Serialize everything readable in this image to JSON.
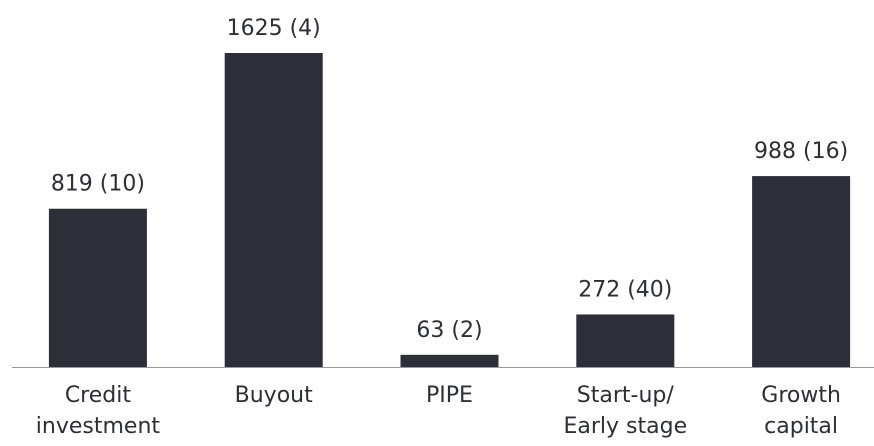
{
  "chart_data": {
    "type": "bar",
    "categories": [
      [
        "Credit",
        "investment"
      ],
      [
        "Buyout"
      ],
      [
        "PIPE"
      ],
      [
        "Start-up/",
        "Early stage"
      ],
      [
        "Growth",
        "capital"
      ]
    ],
    "values": [
      819,
      1625,
      63,
      272,
      988
    ],
    "value_labels": [
      "819 (10)",
      "1625 (4)",
      "63 (2)",
      "272 (40)",
      "988 (16)"
    ],
    "color": "#2e2e38"
  }
}
